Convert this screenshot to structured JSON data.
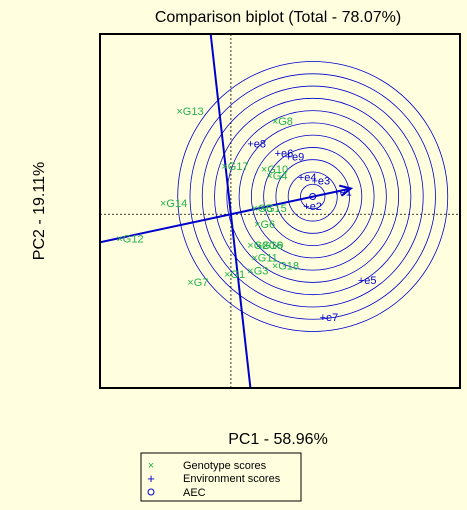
{
  "chart_data": {
    "type": "scatter",
    "title": "Comparison biplot (Total - 78.07%)",
    "xlabel": "PC1 - 58.96%",
    "ylabel": "PC2 - 19.11%",
    "xlim": [
      -4.8,
      8.4
    ],
    "ylim": [
      -5.4,
      5.6
    ],
    "grid": false,
    "legend_position": "bottom",
    "legend": [
      {
        "marker": "×",
        "label": "Genotype scores",
        "color": "#22b14c"
      },
      {
        "marker": "+",
        "label": "Environment scores",
        "color": "#0000cc"
      },
      {
        "marker": "o",
        "label": "AEC",
        "color": "#0000cc"
      }
    ],
    "genotypes": [
      {
        "label": "G13",
        "x": -2.0,
        "y": 3.2
      },
      {
        "label": "G8",
        "x": 1.5,
        "y": 2.9
      },
      {
        "label": "G17",
        "x": -0.35,
        "y": 1.5
      },
      {
        "label": "G10",
        "x": 1.1,
        "y": 1.4
      },
      {
        "label": "G4",
        "x": 1.3,
        "y": 1.2
      },
      {
        "label": "G14",
        "x": -2.6,
        "y": 0.35
      },
      {
        "label": "G5",
        "x": 0.75,
        "y": 0.2
      },
      {
        "label": "G15",
        "x": 1.05,
        "y": 0.2
      },
      {
        "label": "G6",
        "x": 0.85,
        "y": -0.3
      },
      {
        "label": "G12",
        "x": -4.2,
        "y": -0.75
      },
      {
        "label": "G2",
        "x": 0.6,
        "y": -0.95
      },
      {
        "label": "G16",
        "x": 0.9,
        "y": -0.95
      },
      {
        "label": "G9",
        "x": 1.15,
        "y": -0.95
      },
      {
        "label": "G11",
        "x": 0.75,
        "y": -1.35
      },
      {
        "label": "G18",
        "x": 1.5,
        "y": -1.6
      },
      {
        "label": "G3",
        "x": 0.6,
        "y": -1.75
      },
      {
        "label": "G1",
        "x": -0.25,
        "y": -1.85
      },
      {
        "label": "G7",
        "x": -1.6,
        "y": -2.1
      }
    ],
    "environments": [
      {
        "label": "e8",
        "x": 0.75,
        "y": 2.2
      },
      {
        "label": "e6",
        "x": 1.75,
        "y": 1.9
      },
      {
        "label": "e9",
        "x": 2.15,
        "y": 1.8
      },
      {
        "label": "e4",
        "x": 2.6,
        "y": 1.15
      },
      {
        "label": "e3",
        "x": 3.1,
        "y": 1.05
      },
      {
        "label": "e1",
        "x": 3.9,
        "y": 0.7
      },
      {
        "label": "e2",
        "x": 2.8,
        "y": 0.25
      },
      {
        "label": "e5",
        "x": 4.8,
        "y": -2.05
      },
      {
        "label": "e7",
        "x": 3.4,
        "y": -3.2
      }
    ],
    "aec": {
      "point": [
        3.0,
        0.55
      ],
      "average_environment": [
        4.4,
        0.8
      ],
      "perpendicular_slope": -7.55,
      "ring_radii": [
        0.45,
        0.9,
        1.35,
        1.8,
        2.25,
        2.7,
        3.15,
        3.6,
        4.05,
        4.5,
        4.95
      ]
    }
  }
}
